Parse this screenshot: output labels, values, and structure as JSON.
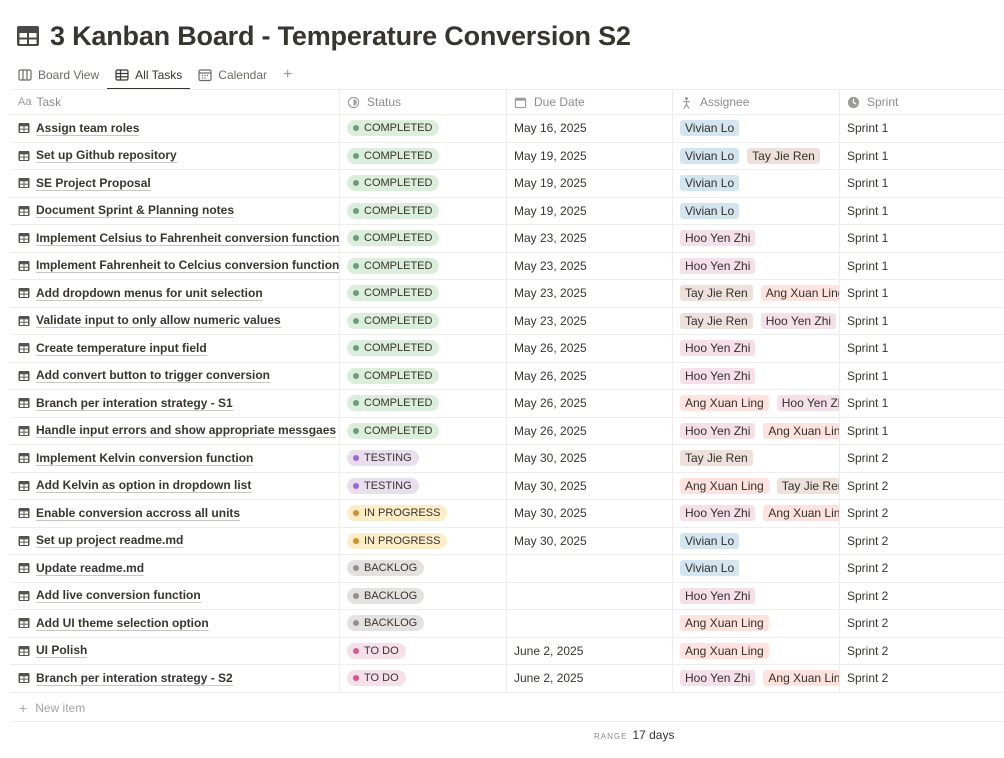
{
  "page": {
    "title": "3 Kanban Board - Temperature Conversion S2"
  },
  "tabs": [
    {
      "label": "Board View",
      "icon": "board-view-icon",
      "active": false
    },
    {
      "label": "All Tasks",
      "icon": "table-view-icon",
      "active": true
    },
    {
      "label": "Calendar",
      "icon": "calendar-icon",
      "active": false
    }
  ],
  "columns": {
    "task": "Task",
    "status": "Status",
    "due_date": "Due Date",
    "assignee": "Assignee",
    "sprint": "Sprint"
  },
  "status_colors": {
    "COMPLETED": {
      "bg": "#dbeddb",
      "dot": "#6c9b7d"
    },
    "TESTING": {
      "bg": "#e8deee",
      "dot": "#9d68d3"
    },
    "IN PROGRESS": {
      "bg": "#fdecc8",
      "dot": "#cb912f"
    },
    "BACKLOG": {
      "bg": "#e3e2e0",
      "dot": "#91918e"
    },
    "TO DO": {
      "bg": "#f5e0e9",
      "dot": "#d15796"
    }
  },
  "assignee_colors": {
    "Vivian Lo": "#d3e5ef",
    "Tay Jie Ren": "#eee0da",
    "Hoo Yen Zhi": "#f5e0e9",
    "Ang Xuan Ling": "#ffe2dd"
  },
  "rows": [
    {
      "task": "Assign team roles",
      "status": "COMPLETED",
      "due": "May 16, 2025",
      "assignees": [
        "Vivian Lo"
      ],
      "sprint": "Sprint 1"
    },
    {
      "task": "Set up Github repository",
      "status": "COMPLETED",
      "due": "May 19, 2025",
      "assignees": [
        "Vivian Lo",
        "Tay Jie Ren"
      ],
      "sprint": "Sprint 1"
    },
    {
      "task": "SE Project Proposal",
      "status": "COMPLETED",
      "due": "May 19, 2025",
      "assignees": [
        "Vivian Lo"
      ],
      "sprint": "Sprint 1"
    },
    {
      "task": "Document Sprint & Planning notes",
      "status": "COMPLETED",
      "due": "May 19, 2025",
      "assignees": [
        "Vivian Lo"
      ],
      "sprint": "Sprint 1"
    },
    {
      "task": "Implement Celsius to Fahrenheit conversion function",
      "status": "COMPLETED",
      "due": "May 23, 2025",
      "assignees": [
        "Hoo Yen Zhi"
      ],
      "sprint": "Sprint 1"
    },
    {
      "task": "Implement Fahrenheit to Celcius conversion function",
      "status": "COMPLETED",
      "due": "May 23, 2025",
      "assignees": [
        "Hoo Yen Zhi"
      ],
      "sprint": "Sprint 1"
    },
    {
      "task": "Add dropdown menus for unit selection",
      "status": "COMPLETED",
      "due": "May 23, 2025",
      "assignees": [
        "Tay Jie Ren",
        "Ang Xuan Ling"
      ],
      "sprint": "Sprint 1"
    },
    {
      "task": "Validate input to only allow numeric values",
      "status": "COMPLETED",
      "due": "May 23, 2025",
      "assignees": [
        "Tay Jie Ren",
        "Hoo Yen Zhi"
      ],
      "sprint": "Sprint 1"
    },
    {
      "task": "Create temperature input field",
      "status": "COMPLETED",
      "due": "May 26, 2025",
      "assignees": [
        "Hoo Yen Zhi"
      ],
      "sprint": "Sprint 1"
    },
    {
      "task": "Add convert button to trigger conversion",
      "status": "COMPLETED",
      "due": "May 26, 2025",
      "assignees": [
        "Hoo Yen Zhi"
      ],
      "sprint": "Sprint 1"
    },
    {
      "task": "Branch per interation strategy - S1",
      "status": "COMPLETED",
      "due": "May 26, 2025",
      "assignees": [
        "Ang Xuan Ling",
        "Hoo Yen Zhi"
      ],
      "sprint": "Sprint 1"
    },
    {
      "task": "Handle input errors and show appropriate messgaes",
      "status": "COMPLETED",
      "due": "May 26, 2025",
      "assignees": [
        "Hoo Yen Zhi",
        "Ang Xuan Ling"
      ],
      "sprint": "Sprint 1"
    },
    {
      "task": "Implement Kelvin conversion function",
      "status": "TESTING",
      "due": "May 30, 2025",
      "assignees": [
        "Tay Jie Ren"
      ],
      "sprint": "Sprint 2"
    },
    {
      "task": "Add Kelvin as option in dropdown list",
      "status": "TESTING",
      "due": "May 30, 2025",
      "assignees": [
        "Ang Xuan Ling",
        "Tay Jie Ren"
      ],
      "sprint": "Sprint 2"
    },
    {
      "task": "Enable conversion accross all units",
      "status": "IN PROGRESS",
      "due": "May 30, 2025",
      "assignees": [
        "Hoo Yen Zhi",
        "Ang Xuan Ling"
      ],
      "sprint": "Sprint 2"
    },
    {
      "task": "Set up project readme.md",
      "status": "IN PROGRESS",
      "due": "May 30, 2025",
      "assignees": [
        "Vivian Lo"
      ],
      "sprint": "Sprint 2"
    },
    {
      "task": "Update readme.md",
      "status": "BACKLOG",
      "due": "",
      "assignees": [
        "Vivian Lo"
      ],
      "sprint": "Sprint 2"
    },
    {
      "task": "Add live conversion function",
      "status": "BACKLOG",
      "due": "",
      "assignees": [
        "Hoo Yen Zhi"
      ],
      "sprint": "Sprint 2"
    },
    {
      "task": "Add UI theme selection option",
      "status": "BACKLOG",
      "due": "",
      "assignees": [
        "Ang Xuan Ling"
      ],
      "sprint": "Sprint 2"
    },
    {
      "task": "UI Polish",
      "status": "TO DO",
      "due": "June 2, 2025",
      "assignees": [
        "Ang Xuan Ling"
      ],
      "sprint": "Sprint 2"
    },
    {
      "task": "Branch per interation strategy - S2",
      "status": "TO DO",
      "due": "June 2, 2025",
      "assignees": [
        "Hoo Yen Zhi",
        "Ang Xuan Ling"
      ],
      "sprint": "Sprint 2"
    }
  ],
  "footer": {
    "new_item": "New item",
    "range_label": "RANGE",
    "range_value": "17 days"
  }
}
